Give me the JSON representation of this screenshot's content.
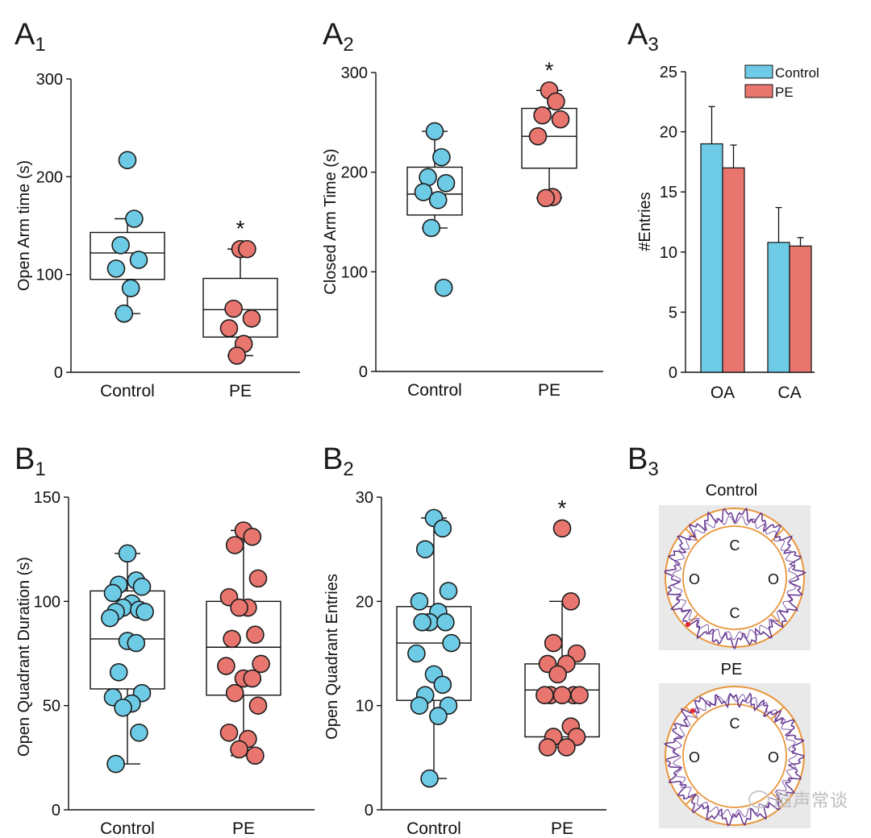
{
  "colors": {
    "control": "#6ecbe6",
    "pe": "#e8766f",
    "track": "#5b2a8a",
    "ring": "#e8963c",
    "arena_bg": "#e9e9e9"
  },
  "watermark": "脑声常谈",
  "chart_data": [
    {
      "id": "A1",
      "type": "box",
      "label": "A",
      "sub": "1",
      "ylabel": "Open Arm time (s)",
      "ylim": [
        0,
        300
      ],
      "yticks": [
        0,
        100,
        200,
        300
      ],
      "categories": [
        "Control",
        "PE"
      ],
      "series": [
        {
          "name": "Control",
          "points": [
            217,
            157,
            130,
            115,
            106,
            86,
            60
          ],
          "box": {
            "whisker_low": 60,
            "q1": 95,
            "median": 122,
            "q3": 143,
            "whisker_high": 157
          }
        },
        {
          "name": "PE",
          "points": [
            126,
            126,
            65,
            55,
            45,
            29,
            17
          ],
          "box": {
            "whisker_low": 17,
            "q1": 36,
            "median": 64,
            "q3": 96,
            "whisker_high": 126
          },
          "marker": "*"
        }
      ]
    },
    {
      "id": "A2",
      "type": "box",
      "label": "A",
      "sub": "2",
      "ylabel": "Closed Arm Time (s)",
      "ylim": [
        0,
        300
      ],
      "yticks": [
        0,
        100,
        200,
        300
      ],
      "categories": [
        "Control",
        "PE"
      ],
      "series": [
        {
          "name": "Control",
          "points": [
            241,
            215,
            195,
            189,
            180,
            172,
            144,
            84
          ],
          "box": {
            "whisker_low": 144,
            "q1": 157,
            "median": 178,
            "q3": 205,
            "whisker_high": 241
          }
        },
        {
          "name": "PE",
          "points": [
            282,
            271,
            257,
            253,
            236,
            175,
            174
          ],
          "box": {
            "whisker_low": 174,
            "q1": 204,
            "median": 236,
            "q3": 264,
            "whisker_high": 282
          },
          "marker": "*"
        }
      ]
    },
    {
      "id": "A3",
      "type": "bar",
      "label": "A",
      "sub": "3",
      "ylabel": "#Entries",
      "ylim": [
        0,
        25
      ],
      "yticks": [
        0,
        5,
        10,
        15,
        20,
        25
      ],
      "categories": [
        "OA",
        "CA"
      ],
      "legend": [
        "Control",
        "PE"
      ],
      "series": [
        {
          "name": "Control",
          "values": [
            19.0,
            10.8
          ],
          "errors": [
            3.1,
            2.9
          ]
        },
        {
          "name": "PE",
          "values": [
            17.0,
            10.5
          ],
          "errors": [
            1.9,
            0.7
          ]
        }
      ]
    },
    {
      "id": "B1",
      "type": "box",
      "label": "B",
      "sub": "1",
      "ylabel": "Open Quadrant Duration (s)",
      "ylim": [
        0,
        150
      ],
      "yticks": [
        0,
        50,
        100,
        150
      ],
      "categories": [
        "Control",
        "PE"
      ],
      "series": [
        {
          "name": "Control",
          "points": [
            123,
            110,
            108,
            107,
            104,
            99,
            97,
            96,
            95,
            95,
            92,
            81,
            80,
            66,
            56,
            54,
            51,
            49,
            37,
            22
          ],
          "box": {
            "whisker_low": 22,
            "q1": 58,
            "median": 82,
            "q3": 105,
            "whisker_high": 123
          }
        },
        {
          "name": "PE",
          "points": [
            134,
            131,
            127,
            111,
            102,
            97,
            97,
            84,
            82,
            70,
            69,
            63,
            63,
            56,
            50,
            37,
            34,
            29,
            26
          ],
          "box": {
            "whisker_low": 26,
            "q1": 55,
            "median": 78,
            "q3": 100,
            "whisker_high": 134
          }
        }
      ]
    },
    {
      "id": "B2",
      "type": "box",
      "label": "B",
      "sub": "2",
      "ylabel": "Open Quadrant Entries",
      "ylim": [
        0,
        30
      ],
      "yticks": [
        0,
        10,
        20,
        30
      ],
      "categories": [
        "Control",
        "PE"
      ],
      "series": [
        {
          "name": "Control",
          "points": [
            28,
            27,
            25,
            21,
            20,
            19,
            18,
            18,
            18,
            16,
            15,
            13,
            12,
            11,
            10,
            10,
            9,
            3
          ],
          "box": {
            "whisker_low": 3,
            "q1": 10.5,
            "median": 16,
            "q3": 19.5,
            "whisker_high": 28
          }
        },
        {
          "name": "PE",
          "points": [
            27,
            20,
            16,
            15,
            14,
            14,
            13,
            11,
            11,
            11,
            11,
            11,
            8,
            7,
            7,
            6,
            6
          ],
          "box": {
            "whisker_low": 6,
            "q1": 7,
            "median": 11.5,
            "q3": 14,
            "whisker_high": 20
          },
          "marker": "*"
        }
      ]
    },
    {
      "id": "B3",
      "type": "image",
      "label": "B",
      "sub": "3",
      "arenas": [
        {
          "title": "Control",
          "quadrants": {
            "top": "C",
            "left": "O",
            "right": "O",
            "bottom": "C"
          }
        },
        {
          "title": "PE",
          "quadrants": {
            "top": "C",
            "left": "O",
            "right": "O"
          }
        }
      ]
    }
  ]
}
